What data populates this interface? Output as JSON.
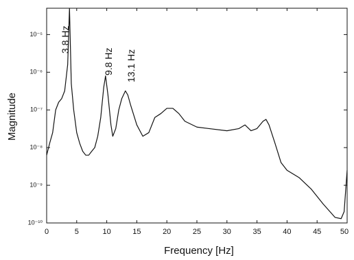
{
  "chart_data": {
    "type": "line",
    "x_label": "Frequency [Hz]",
    "y_label": "Magnitude",
    "annotations": [
      "3.8 Hz",
      "9.8 Hz",
      "13.1 Hz"
    ],
    "log_y": true,
    "xlim": [
      0,
      50
    ],
    "xticks": [
      0,
      5,
      10,
      15,
      20,
      25,
      30,
      35,
      40,
      45,
      50
    ],
    "ylim": [
      1e-10,
      5e-05
    ],
    "yticks": [
      {
        "value": 1e-10,
        "label": "10⁻¹⁰"
      },
      {
        "value": 1e-09,
        "label": "10⁻⁹"
      },
      {
        "value": 1e-08,
        "label": "10⁻⁸"
      },
      {
        "value": 1e-07,
        "label": "10⁻⁷"
      },
      {
        "value": 1e-06,
        "label": "10⁻⁶"
      },
      {
        "value": 1e-05,
        "label": "10⁻⁵"
      }
    ],
    "x": [
      0,
      0.5,
      1,
      1.5,
      2,
      2.5,
      3,
      3.5,
      3.8,
      4.1,
      4.5,
      5,
      5.5,
      6,
      6.5,
      7,
      7.5,
      8,
      8.5,
      9,
      9.5,
      9.8,
      10.2,
      10.7,
      11,
      11.5,
      12,
      12.5,
      13.1,
      13.5,
      14,
      15,
      16,
      17,
      18,
      19,
      20,
      21,
      22,
      23,
      25,
      27,
      30,
      32,
      33,
      34,
      35,
      36,
      36.5,
      37,
      38,
      39,
      40,
      42,
      44,
      46,
      48,
      49,
      49.5,
      50
    ],
    "series": [
      {
        "name": null,
        "color": "#111111",
        "values": [
          6.3e-09,
          1.3e-08,
          2.5e-08,
          1e-07,
          1.6e-07,
          2e-07,
          3.2e-07,
          1.6e-06,
          5e-05,
          5e-07,
          1e-07,
          2.5e-08,
          1.3e-08,
          8e-09,
          6.3e-09,
          6.3e-09,
          8e-09,
          1e-08,
          2e-08,
          6.3e-08,
          4e-07,
          8e-07,
          2.5e-07,
          4e-08,
          2e-08,
          3.2e-08,
          1e-07,
          2e-07,
          3.2e-07,
          2.5e-07,
          1.3e-07,
          4e-08,
          2e-08,
          2.5e-08,
          6.3e-08,
          8e-08,
          1.1e-07,
          1.1e-07,
          8e-08,
          5e-08,
          3.5e-08,
          3.2e-08,
          2.8e-08,
          3.2e-08,
          4e-08,
          2.8e-08,
          3.2e-08,
          5e-08,
          5.6e-08,
          4e-08,
          1.3e-08,
          4e-09,
          2.5e-09,
          1.6e-09,
          8e-10,
          3.2e-10,
          1.4e-10,
          1.3e-10,
          2e-10,
          2.5e-09
        ]
      }
    ]
  }
}
